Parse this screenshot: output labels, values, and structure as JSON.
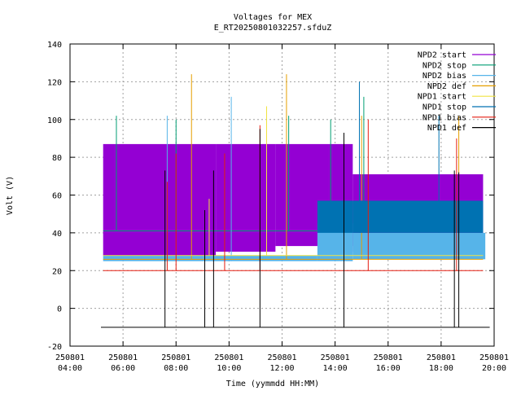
{
  "chart_data": {
    "type": "line",
    "title": "Voltages for MEX",
    "subtitle": "E_RT20250801032257.sfduZ",
    "xlabel": "Time (yymmdd HH:MM)",
    "ylabel": "Volt (V)",
    "xlim": [
      "2025-08-01 04:00",
      "2025-08-01 20:00"
    ],
    "ylim": [
      -20,
      140
    ],
    "grid": true,
    "legend_position": "top-right",
    "y_ticks": [
      "-20",
      "0",
      "20",
      "40",
      "60",
      "80",
      "100",
      "120",
      "140"
    ],
    "x_ticks": [
      {
        "date": "250801",
        "time": "04:00"
      },
      {
        "date": "250801",
        "time": "06:00"
      },
      {
        "date": "250801",
        "time": "08:00"
      },
      {
        "date": "250801",
        "time": "10:00"
      },
      {
        "date": "250801",
        "time": "12:00"
      },
      {
        "date": "250801",
        "time": "14:00"
      },
      {
        "date": "250801",
        "time": "16:00"
      },
      {
        "date": "250801",
        "time": "18:00"
      },
      {
        "date": "250801",
        "time": "20:00"
      }
    ],
    "series": [
      {
        "name": "NPD2 start",
        "color": "#9400d3",
        "bands": [
          {
            "t0": "05:15",
            "t1": "09:30",
            "low": 28,
            "high": 87
          },
          {
            "t0": "09:30",
            "t1": "11:45",
            "low": 30,
            "high": 87
          },
          {
            "t0": "11:45",
            "t1": "14:40",
            "low": 33,
            "high": 87
          },
          {
            "t0": "14:40",
            "t1": "19:35",
            "low": 30,
            "high": 71
          }
        ]
      },
      {
        "name": "NPD2 stop",
        "color": "#009e73",
        "baseline": 41,
        "t0": "05:15",
        "t1": "19:35",
        "spikes": [
          {
            "t": "05:45",
            "v": 102
          },
          {
            "t": "08:00",
            "v": 100
          },
          {
            "t": "12:15",
            "v": 102
          },
          {
            "t": "13:50",
            "v": 100
          },
          {
            "t": "15:05",
            "v": 112
          }
        ]
      },
      {
        "name": "NPD2 bias",
        "color": "#56b4e9",
        "bands": [
          {
            "t0": "05:15",
            "t1": "13:20",
            "low": 25,
            "high": 28
          },
          {
            "t0": "13:20",
            "t1": "14:40",
            "low": 25,
            "high": 45
          },
          {
            "t0": "14:40",
            "t1": "19:40",
            "low": 26,
            "high": 40
          }
        ],
        "spikes": [
          {
            "t": "07:40",
            "v": 102
          },
          {
            "t": "10:05",
            "v": 112
          }
        ]
      },
      {
        "name": "NPD2 def",
        "color": "#e69f00",
        "baseline": 26,
        "t0": "05:15",
        "t1": "19:35",
        "spikes": [
          {
            "t": "08:35",
            "v": 124
          },
          {
            "t": "12:10",
            "v": 124
          },
          {
            "t": "15:00",
            "v": 102
          },
          {
            "t": "18:40",
            "v": 102
          }
        ]
      },
      {
        "name": "NPD1 start",
        "color": "#f0e442",
        "baseline": 28,
        "t0": "05:15",
        "t1": "19:35",
        "spikes": [
          {
            "t": "11:25",
            "v": 107
          },
          {
            "t": "09:15",
            "v": 58
          }
        ]
      },
      {
        "name": "NPD1 stop",
        "color": "#0072b2",
        "bands": [
          {
            "t0": "13:20",
            "t1": "14:40",
            "low": 40,
            "high": 57
          },
          {
            "t0": "14:40",
            "t1": "19:35",
            "low": 40,
            "high": 57
          }
        ],
        "spikes": [
          {
            "t": "14:55",
            "v": 120
          },
          {
            "t": "17:55",
            "v": 102
          },
          {
            "t": "19:30",
            "v": 57
          }
        ]
      },
      {
        "name": "NPD1 bias",
        "color": "#e51e10",
        "baseline": 20,
        "t0": "05:15",
        "t1": "19:35",
        "spikes": [
          {
            "t": "07:40",
            "v": 67
          },
          {
            "t": "08:00",
            "v": 82
          },
          {
            "t": "09:50",
            "v": 82
          },
          {
            "t": "11:10",
            "v": 97
          },
          {
            "t": "15:15",
            "v": 100
          },
          {
            "t": "18:35",
            "v": 90
          }
        ]
      },
      {
        "name": "NPD1 def",
        "color": "#000000",
        "baseline": -10,
        "t0": "05:10",
        "t1": "19:50",
        "spikes": [
          {
            "t": "07:35",
            "v": 73
          },
          {
            "t": "09:05",
            "v": 52
          },
          {
            "t": "09:25",
            "v": 73
          },
          {
            "t": "11:10",
            "v": 95
          },
          {
            "t": "14:20",
            "v": 93
          },
          {
            "t": "18:30",
            "v": 73
          },
          {
            "t": "18:40",
            "v": 72
          }
        ]
      }
    ]
  }
}
